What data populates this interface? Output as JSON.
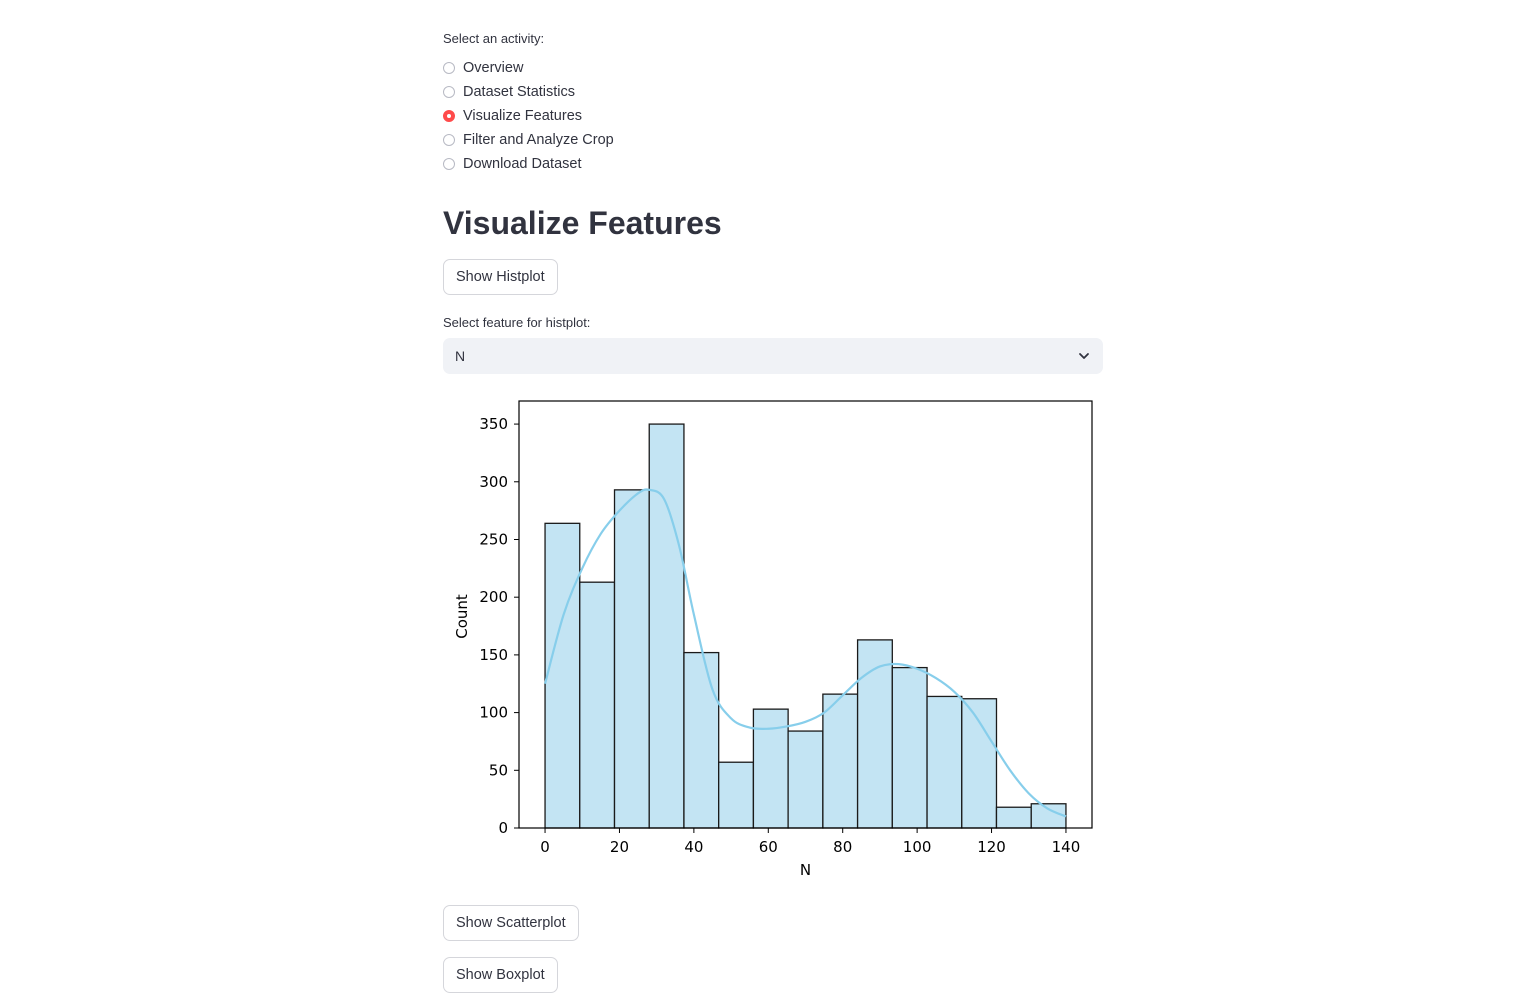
{
  "activity": {
    "label": "Select an activity:",
    "options": [
      "Overview",
      "Dataset Statistics",
      "Visualize Features",
      "Filter and Analyze Crop",
      "Download Dataset"
    ],
    "selected_index": 2
  },
  "page_title": "Visualize Features",
  "buttons": {
    "histplot": "Show Histplot",
    "scatterplot": "Show Scatterplot",
    "boxplot": "Show Boxplot"
  },
  "feature_select": {
    "label": "Select feature for histplot:",
    "value": "N"
  },
  "colors": {
    "accent": "#ff4b4b",
    "bar_fill": "#c3e4f3",
    "kde_line": "#87ceeb"
  },
  "chart_data": {
    "type": "bar",
    "xlabel": "N",
    "ylabel": "Count",
    "xlim": [
      -7,
      147
    ],
    "ylim": [
      0,
      370
    ],
    "x_ticks": [
      0,
      20,
      40,
      60,
      80,
      100,
      120,
      140
    ],
    "y_ticks": [
      0,
      50,
      100,
      150,
      200,
      250,
      300,
      350
    ],
    "bin_edges": [
      0,
      9.33,
      18.67,
      28,
      37.33,
      46.67,
      56,
      65.33,
      74.67,
      84,
      93.33,
      102.67,
      112,
      121.33,
      130.67,
      140
    ],
    "values": [
      264,
      213,
      293,
      350,
      152,
      57,
      103,
      84,
      116,
      163,
      139,
      114,
      112,
      18,
      21
    ],
    "kde": {
      "x": [
        0,
        5,
        10,
        15,
        20,
        25,
        28,
        32,
        36,
        40,
        45,
        50,
        55,
        60,
        65,
        70,
        75,
        80,
        85,
        90,
        95,
        100,
        105,
        110,
        115,
        120,
        125,
        130,
        135,
        140
      ],
      "y": [
        125,
        185,
        225,
        255,
        275,
        290,
        293,
        285,
        245,
        185,
        120,
        95,
        87,
        86,
        88,
        92,
        100,
        115,
        130,
        140,
        142,
        138,
        130,
        118,
        100,
        75,
        50,
        30,
        17,
        10
      ]
    },
    "grid": false,
    "legend": "none"
  }
}
